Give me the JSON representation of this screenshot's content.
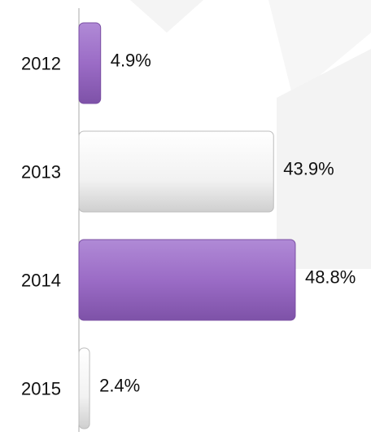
{
  "chart_data": {
    "type": "bar",
    "orientation": "horizontal",
    "categories": [
      "2012",
      "2013",
      "2014",
      "2015"
    ],
    "values": [
      4.9,
      43.9,
      48.8,
      2.4
    ],
    "value_labels": [
      "4.9%",
      "43.9%",
      "48.8%",
      "2.4%"
    ],
    "colors": [
      "#9b6cc6",
      "#f2f2f2",
      "#9b6cc6",
      "#f2f2f2"
    ]
  }
}
